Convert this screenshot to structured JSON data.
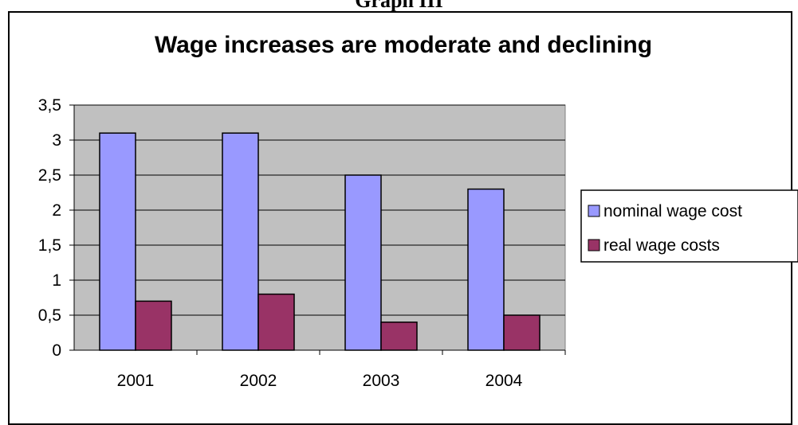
{
  "caption": "Graph III",
  "chart_data": {
    "type": "bar",
    "title": "Wage increases are moderate and declining",
    "xlabel": "",
    "ylabel": "",
    "categories": [
      "2001",
      "2002",
      "2003",
      "2004"
    ],
    "series": [
      {
        "name": "nominal wage cost",
        "values": [
          3.1,
          3.1,
          2.5,
          2.3
        ],
        "color": "#9999ff"
      },
      {
        "name": "real wage costs",
        "values": [
          0.7,
          0.8,
          0.4,
          0.5
        ],
        "color": "#993366"
      }
    ],
    "ylim": [
      0,
      3.5
    ],
    "yticks": [
      "0",
      "0,5",
      "1",
      "1,5",
      "2",
      "2,5",
      "3",
      "3,5"
    ],
    "plot_background": "#c0c0c0",
    "grid": true,
    "legend_position": "right"
  }
}
